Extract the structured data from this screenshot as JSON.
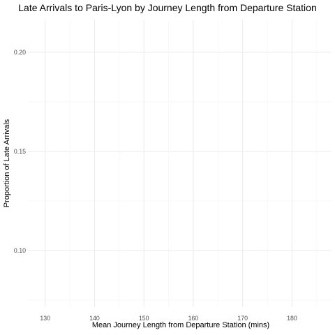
{
  "chart_data": {
    "type": "scatter",
    "title": "Late Arrivals to Paris-Lyon by Journey Length from Departure Station",
    "xlabel": "Mean Journey Length from Departure Station (mins)",
    "ylabel": "Proportion of Late Arrivals",
    "xlim": [
      126.5,
      188
    ],
    "ylim": [
      0.0715,
      0.2165
    ],
    "x_ticks": [
      130,
      140,
      150,
      160,
      170,
      180
    ],
    "x_tick_labels": [
      "130",
      "140",
      "150",
      "160",
      "170",
      "180"
    ],
    "y_ticks": [
      0.1,
      0.15,
      0.2
    ],
    "y_tick_labels": [
      "0.10",
      "0.15",
      "0.20"
    ],
    "grid": true,
    "legend": "none",
    "points": [],
    "colors": {
      "background": "#ffffff",
      "grid_major": "#ebebeb",
      "grid_minor": "#f5f5f5",
      "tick_text": "#4d4d4d",
      "text": "#000000"
    }
  }
}
